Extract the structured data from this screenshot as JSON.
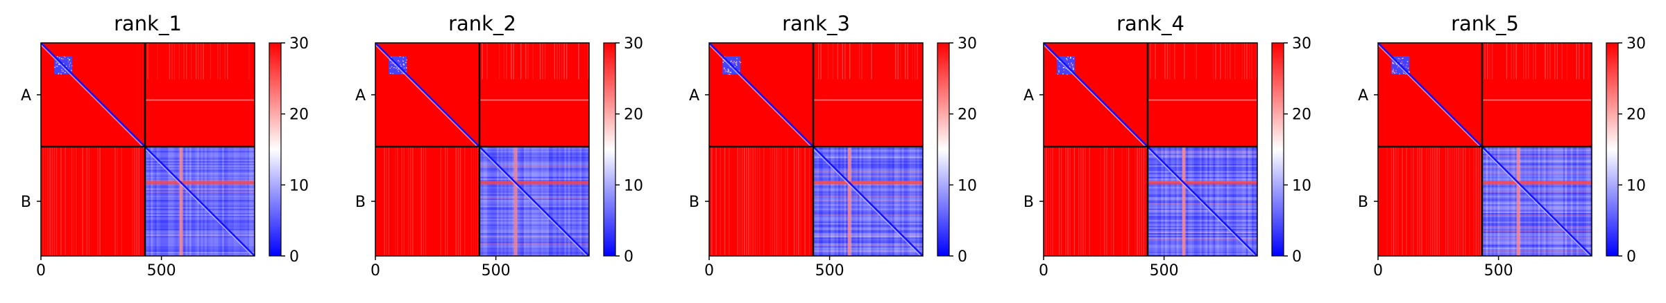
{
  "chart_data": [
    {
      "type": "heatmap",
      "title": "rank_1",
      "x_ticks": [
        "0",
        "500"
      ],
      "y_ticks": [
        "A",
        "B"
      ],
      "chains": [
        "A",
        "B"
      ],
      "chain_boundary": 432,
      "n_residues": 887,
      "xlim": [
        0,
        887
      ],
      "colorbar": {
        "vmin": 0,
        "vmax": 30,
        "ticks": [
          "0",
          "10",
          "20",
          "30"
        ],
        "colormap": "bwr"
      },
      "blocks": [
        {
          "rows": "A",
          "cols": "A",
          "mean_value": 30
        },
        {
          "rows": "A",
          "cols": "B",
          "mean_value": 28
        },
        {
          "rows": "B",
          "cols": "A",
          "mean_value": 28
        },
        {
          "rows": "B",
          "cols": "B",
          "mean_value": 6
        }
      ]
    },
    {
      "type": "heatmap",
      "title": "rank_2",
      "x_ticks": [
        "0",
        "500"
      ],
      "y_ticks": [
        "A",
        "B"
      ],
      "chains": [
        "A",
        "B"
      ],
      "chain_boundary": 432,
      "n_residues": 887,
      "xlim": [
        0,
        887
      ],
      "colorbar": {
        "vmin": 0,
        "vmax": 30,
        "ticks": [
          "0",
          "10",
          "20",
          "30"
        ],
        "colormap": "bwr"
      },
      "blocks": [
        {
          "rows": "A",
          "cols": "A",
          "mean_value": 30
        },
        {
          "rows": "A",
          "cols": "B",
          "mean_value": 28
        },
        {
          "rows": "B",
          "cols": "A",
          "mean_value": 28
        },
        {
          "rows": "B",
          "cols": "B",
          "mean_value": 6
        }
      ]
    },
    {
      "type": "heatmap",
      "title": "rank_3",
      "x_ticks": [
        "0",
        "500"
      ],
      "y_ticks": [
        "A",
        "B"
      ],
      "chains": [
        "A",
        "B"
      ],
      "chain_boundary": 432,
      "n_residues": 887,
      "xlim": [
        0,
        887
      ],
      "colorbar": {
        "vmin": 0,
        "vmax": 30,
        "ticks": [
          "0",
          "10",
          "20",
          "30"
        ],
        "colormap": "bwr"
      },
      "blocks": [
        {
          "rows": "A",
          "cols": "A",
          "mean_value": 30
        },
        {
          "rows": "A",
          "cols": "B",
          "mean_value": 28
        },
        {
          "rows": "B",
          "cols": "A",
          "mean_value": 28
        },
        {
          "rows": "B",
          "cols": "B",
          "mean_value": 6
        }
      ]
    },
    {
      "type": "heatmap",
      "title": "rank_4",
      "x_ticks": [
        "0",
        "500"
      ],
      "y_ticks": [
        "A",
        "B"
      ],
      "chains": [
        "A",
        "B"
      ],
      "chain_boundary": 432,
      "n_residues": 887,
      "xlim": [
        0,
        887
      ],
      "colorbar": {
        "vmin": 0,
        "vmax": 30,
        "ticks": [
          "0",
          "10",
          "20",
          "30"
        ],
        "colormap": "bwr"
      },
      "blocks": [
        {
          "rows": "A",
          "cols": "A",
          "mean_value": 30
        },
        {
          "rows": "A",
          "cols": "B",
          "mean_value": 28
        },
        {
          "rows": "B",
          "cols": "A",
          "mean_value": 28
        },
        {
          "rows": "B",
          "cols": "B",
          "mean_value": 6
        }
      ]
    },
    {
      "type": "heatmap",
      "title": "rank_5",
      "x_ticks": [
        "0",
        "500"
      ],
      "y_ticks": [
        "A",
        "B"
      ],
      "chains": [
        "A",
        "B"
      ],
      "chain_boundary": 432,
      "n_residues": 887,
      "xlim": [
        0,
        887
      ],
      "colorbar": {
        "vmin": 0,
        "vmax": 30,
        "ticks": [
          "0",
          "10",
          "20",
          "30"
        ],
        "colormap": "bwr"
      },
      "blocks": [
        {
          "rows": "A",
          "cols": "A",
          "mean_value": 30
        },
        {
          "rows": "A",
          "cols": "B",
          "mean_value": 28
        },
        {
          "rows": "B",
          "cols": "A",
          "mean_value": 28
        },
        {
          "rows": "B",
          "cols": "B",
          "mean_value": 6
        }
      ]
    }
  ],
  "colors": {
    "low": "#0000ff",
    "mid": "#ffffff",
    "high": "#ff0000",
    "boundary_line": "#000000",
    "frame": "#000000"
  }
}
